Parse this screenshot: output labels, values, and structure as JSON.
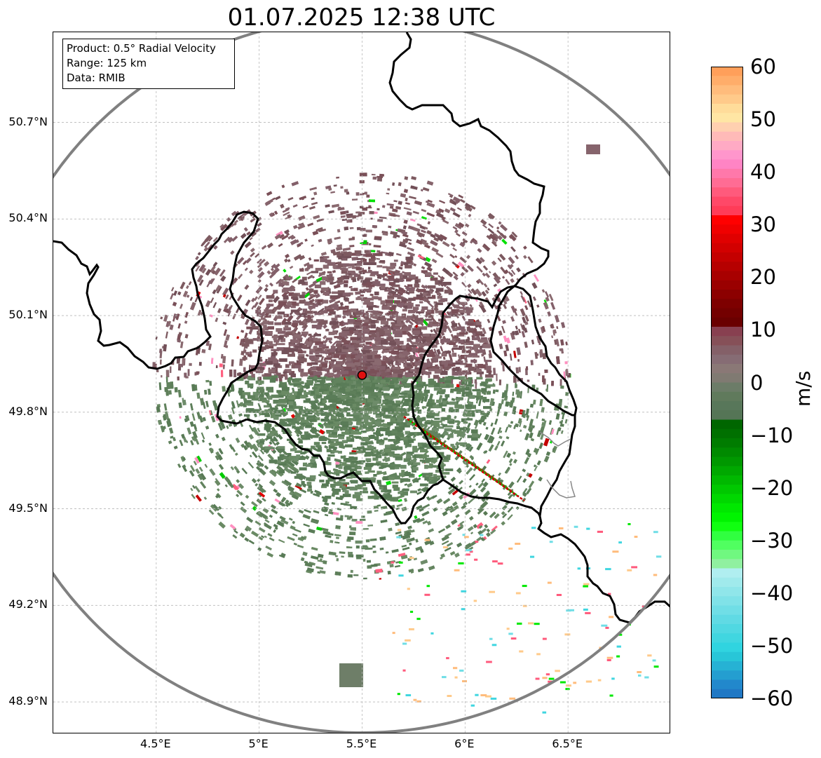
{
  "title": "01.07.2025 12:38 UTC",
  "info_box": {
    "product": "Product: 0.5° Radial Velocity",
    "range": "Range: 125 km",
    "data": "Data: RMIB"
  },
  "map": {
    "lon_range": [
      4.0,
      7.0
    ],
    "lat_range": [
      48.8,
      50.98
    ],
    "radar_site": {
      "lon": 5.5,
      "lat": 49.915
    },
    "lat_ticks": [
      {
        "value": 50.7,
        "label": "50.7°N"
      },
      {
        "value": 50.4,
        "label": "50.4°N"
      },
      {
        "value": 50.1,
        "label": "50.1°N"
      },
      {
        "value": 49.8,
        "label": "49.8°N"
      },
      {
        "value": 49.5,
        "label": "49.5°N"
      },
      {
        "value": 49.2,
        "label": "49.2°N"
      },
      {
        "value": 48.9,
        "label": "48.9°N"
      }
    ],
    "lon_ticks": [
      {
        "value": 4.5,
        "label": "4.5°E"
      },
      {
        "value": 5.0,
        "label": "5°E"
      },
      {
        "value": 5.5,
        "label": "5.5°E"
      },
      {
        "value": 6.0,
        "label": "6°E"
      },
      {
        "value": 6.5,
        "label": "6.5°E"
      }
    ],
    "grid": true,
    "range_ring_color": "#808080",
    "border_color": "#000000"
  },
  "colorbar": {
    "min": -60,
    "max": 60,
    "unit": "m/s",
    "ticks": [
      {
        "value": 60,
        "label": "60"
      },
      {
        "value": 50,
        "label": "50"
      },
      {
        "value": 40,
        "label": "40"
      },
      {
        "value": 30,
        "label": "30"
      },
      {
        "value": 20,
        "label": "20"
      },
      {
        "value": 10,
        "label": "10"
      },
      {
        "value": 0,
        "label": "0"
      },
      {
        "value": -10,
        "label": "−10"
      },
      {
        "value": -20,
        "label": "−20"
      },
      {
        "value": -30,
        "label": "−30"
      },
      {
        "value": -40,
        "label": "−40"
      },
      {
        "value": -50,
        "label": "−50"
      },
      {
        "value": -60,
        "label": "−60"
      }
    ],
    "colors_top_to_bottom": [
      "#ff9f5a",
      "#ffad6a",
      "#ffbc7c",
      "#ffca8a",
      "#ffdc9a",
      "#ffe6a4",
      "#ffd0b0",
      "#ffbab8",
      "#ffaac4",
      "#ff96cc",
      "#ff84c4",
      "#ff78aa",
      "#ff6c94",
      "#ff5a7c",
      "#ff4868",
      "#ff3c58",
      "#ff0000",
      "#f00000",
      "#e00000",
      "#d20000",
      "#c40000",
      "#b60000",
      "#a80000",
      "#9a0000",
      "#8c0000",
      "#7e0000",
      "#740000",
      "#6a0000",
      "#884050",
      "#865058",
      "#846068",
      "#866c74",
      "#8a7876",
      "#807a72",
      "#6c7c68",
      "#607a5c",
      "#58775a",
      "#557556",
      "#006600",
      "#007000",
      "#007c00",
      "#008a00",
      "#009800",
      "#00a800",
      "#00b800",
      "#00c800",
      "#00d800",
      "#00e800",
      "#00f400",
      "#10ff10",
      "#30ff40",
      "#50ff60",
      "#70f880",
      "#90f0a0",
      "#b0eef0",
      "#a0eaec",
      "#90e6ea",
      "#80e2e8",
      "#70dee6",
      "#60dae4",
      "#50d8e2",
      "#40d6e0",
      "#30d4e0",
      "#28c6d8",
      "#26b2d4",
      "#249ed0",
      "#2288cc",
      "#2078c4"
    ]
  }
}
